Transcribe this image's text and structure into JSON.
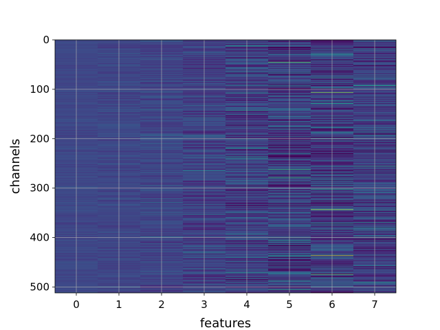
{
  "chart_data": {
    "type": "heatmap",
    "xlabel": "features",
    "ylabel": "channels",
    "x_ticks": [
      "0",
      "1",
      "2",
      "3",
      "4",
      "5",
      "6",
      "7"
    ],
    "y_ticks": [
      "0",
      "100",
      "200",
      "300",
      "400",
      "500"
    ],
    "x_range": [
      -0.5,
      7.5
    ],
    "y_range": [
      0,
      512
    ],
    "n_features": 8,
    "n_channels": 512,
    "y_inverted": true,
    "grid": true,
    "colormap": "viridis",
    "colors": {
      "background_low": "#3b528b",
      "mid": "#21918c",
      "high": "#5ec962",
      "peak": "#fde725",
      "dark": "#472d7b"
    },
    "feature_variation": [
      0.06,
      0.08,
      0.12,
      0.18,
      0.24,
      0.3,
      0.3,
      0.26
    ],
    "highlights": [
      {
        "feature": 4,
        "channel": 12,
        "value": 0.6
      },
      {
        "feature": 5,
        "channel": 45,
        "value": 0.85
      },
      {
        "feature": 5,
        "channel": 65,
        "value": 0.55
      },
      {
        "feature": 6,
        "channel": 28,
        "value": 0.6
      },
      {
        "feature": 6,
        "channel": 76,
        "value": 0.6
      },
      {
        "feature": 6,
        "channel": 106,
        "value": 0.9
      },
      {
        "feature": 7,
        "channel": 92,
        "value": 0.65
      },
      {
        "feature": 4,
        "channel": 107,
        "value": 0.55
      },
      {
        "feature": 4,
        "channel": 142,
        "value": 0.6
      },
      {
        "feature": 3,
        "channel": 157,
        "value": 0.5
      },
      {
        "feature": 6,
        "channel": 186,
        "value": 0.55
      },
      {
        "feature": 7,
        "channel": 192,
        "value": 0.5
      },
      {
        "feature": 4,
        "channel": 218,
        "value": 0.6
      },
      {
        "feature": 4,
        "channel": 236,
        "value": 0.55
      },
      {
        "feature": 7,
        "channel": 255,
        "value": 0.65
      },
      {
        "feature": 5,
        "channel": 262,
        "value": 0.75
      },
      {
        "feature": 5,
        "channel": 278,
        "value": 0.75
      },
      {
        "feature": 3,
        "channel": 265,
        "value": 0.5
      },
      {
        "feature": 6,
        "channel": 343,
        "value": 0.95
      },
      {
        "feature": 7,
        "channel": 380,
        "value": 0.55
      },
      {
        "feature": 4,
        "channel": 393,
        "value": 0.5
      },
      {
        "feature": 5,
        "channel": 406,
        "value": 0.55
      },
      {
        "feature": 7,
        "channel": 400,
        "value": 0.55
      },
      {
        "feature": 6,
        "channel": 436,
        "value": 0.95
      },
      {
        "feature": 5,
        "channel": 438,
        "value": 0.5
      },
      {
        "feature": 4,
        "channel": 470,
        "value": 0.55
      },
      {
        "feature": 6,
        "channel": 474,
        "value": 0.85
      },
      {
        "feature": 7,
        "channel": 490,
        "value": 0.6
      },
      {
        "feature": 5,
        "channel": 488,
        "value": 0.55
      },
      {
        "feature": 0,
        "channel": 500,
        "value": 0.35
      },
      {
        "feature": 1,
        "channel": 500,
        "value": 0.35
      },
      {
        "feature": 2,
        "channel": 352,
        "value": 0.4
      },
      {
        "feature": 3,
        "channel": 430,
        "value": 0.45
      }
    ]
  }
}
